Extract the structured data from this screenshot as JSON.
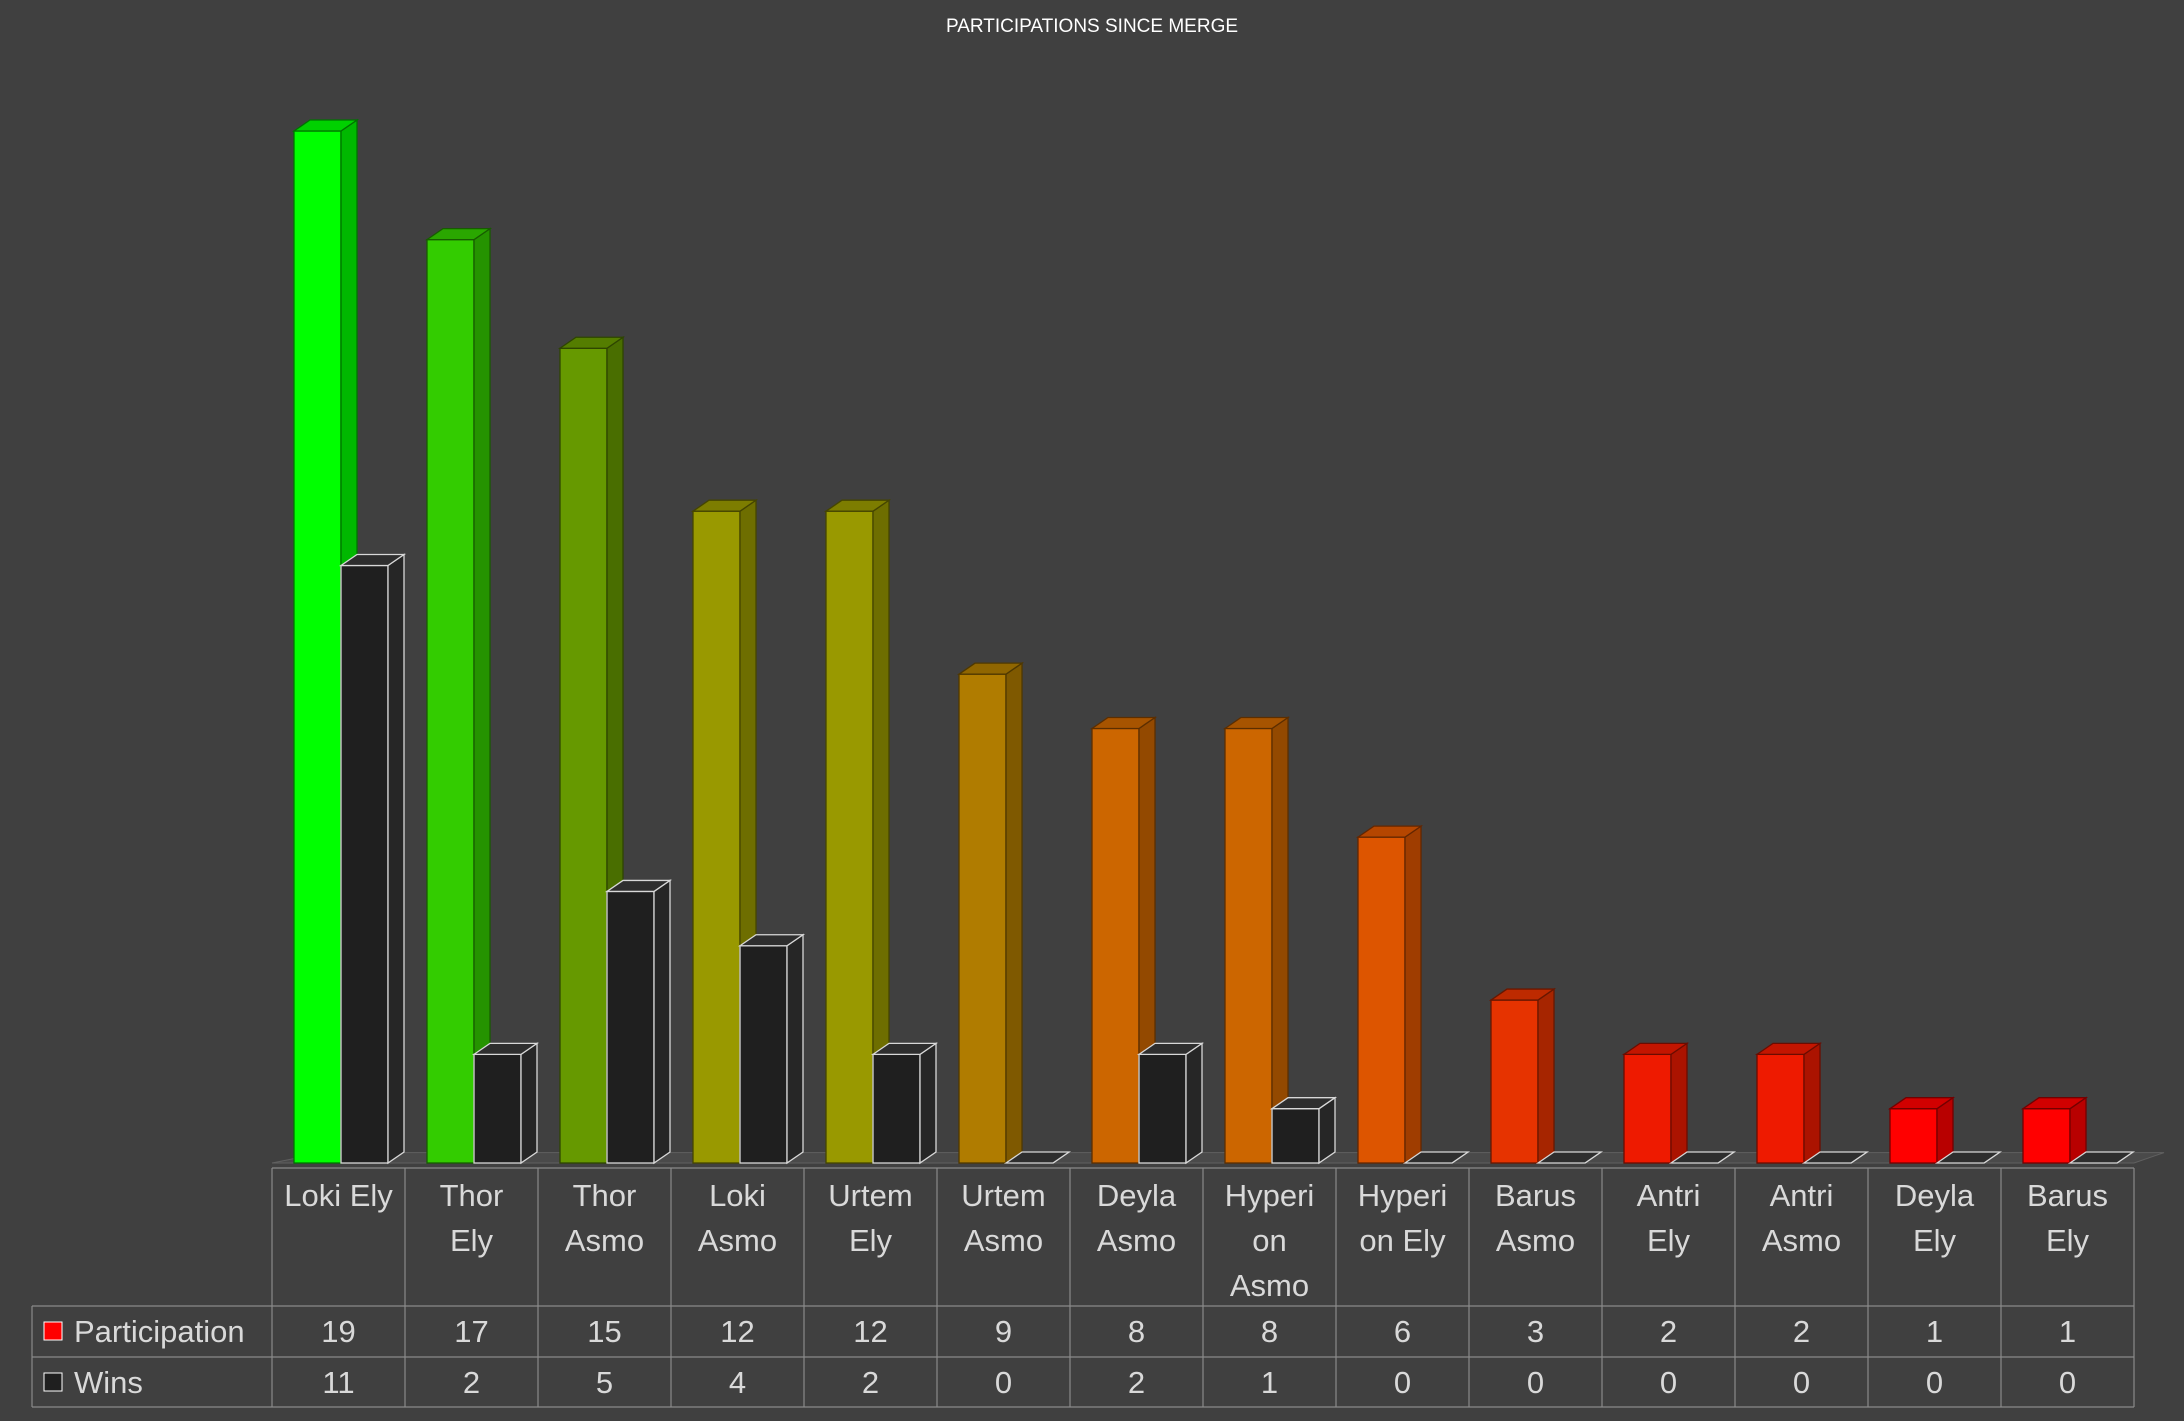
{
  "chart_data": {
    "type": "bar",
    "title": "PARTICIPATIONS SINCE MERGE",
    "categories": [
      [
        "Loki Ely"
      ],
      [
        "Thor",
        "Ely"
      ],
      [
        "Thor",
        "Asmo"
      ],
      [
        "Loki",
        "Asmo"
      ],
      [
        "Urtem",
        "Ely"
      ],
      [
        "Urtem",
        "Asmo"
      ],
      [
        "Deyla",
        "Asmo"
      ],
      [
        "Hyperi",
        "on",
        "Asmo"
      ],
      [
        "Hyperi",
        "on Ely"
      ],
      [
        "Barus",
        "Asmo"
      ],
      [
        "Antri",
        "Ely"
      ],
      [
        "Antri",
        "Asmo"
      ],
      [
        "Deyla",
        "Ely"
      ],
      [
        "Barus",
        "Ely"
      ]
    ],
    "series": [
      {
        "name": "Participation",
        "legend_color": "#ff0000",
        "values": [
          19,
          17,
          15,
          12,
          12,
          9,
          8,
          8,
          6,
          3,
          2,
          2,
          1,
          1
        ],
        "colors": [
          "#00ff00",
          "#33cc00",
          "#669900",
          "#999900",
          "#999900",
          "#b07c00",
          "#cc6600",
          "#cc6600",
          "#dd5500",
          "#e63300",
          "#ee1a00",
          "#ee1a00",
          "#ff0000",
          "#ff0000"
        ]
      },
      {
        "name": "Wins",
        "legend_color": "#1f1f1f",
        "values": [
          11,
          2,
          5,
          4,
          2,
          0,
          2,
          1,
          0,
          0,
          0,
          0,
          0,
          0
        ],
        "color": "#1f1f1f"
      }
    ],
    "ylim": [
      0,
      19
    ],
    "grid": false,
    "legend": "data-table",
    "data_table": true
  }
}
